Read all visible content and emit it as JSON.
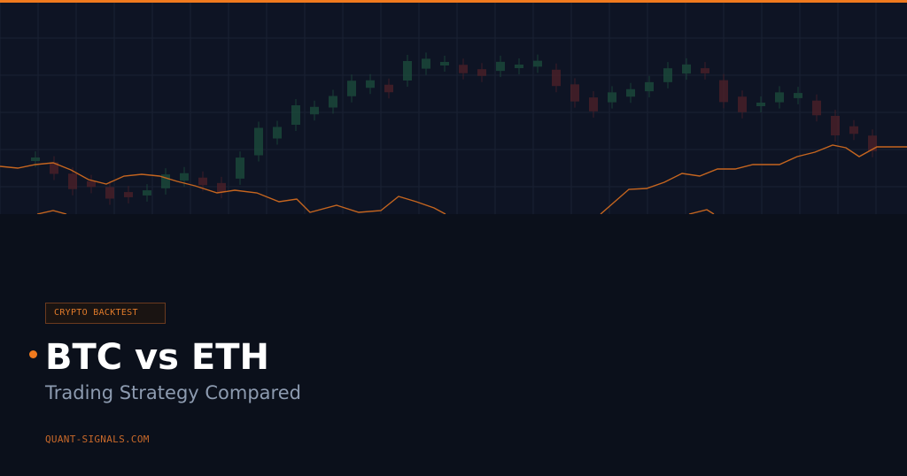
{
  "badge": "CRYPTO BACKTEST",
  "title": "BTC vs ETH",
  "subtitle": "Trading Strategy Compared",
  "footer": "QUANT-SIGNALS.COM"
}
